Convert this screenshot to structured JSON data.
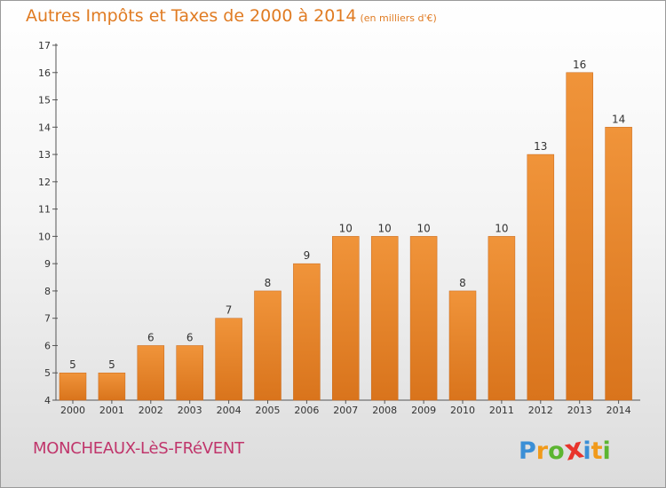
{
  "title": "Autres Impôts et Taxes de 2000 à 2014",
  "subtitle": "(en milliers d'€)",
  "commune": "MONCHEAUX-LèS-FRéVENT",
  "logo": {
    "letters": [
      "P",
      "r",
      "o",
      "x",
      "i",
      "t",
      "i"
    ],
    "colors": [
      "#3b8fd6",
      "#f19a1a",
      "#5cb531",
      "#e8342c",
      "#3b8fd6",
      "#f19a1a",
      "#5cb531"
    ]
  },
  "colors": {
    "bar": "#f0943a",
    "bar_dark": "#d9741c",
    "title": "#e07b22",
    "commune": "#c0356b"
  },
  "chart_data": {
    "type": "bar",
    "categories": [
      "2000",
      "2001",
      "2002",
      "2003",
      "2004",
      "2005",
      "2006",
      "2007",
      "2008",
      "2009",
      "2010",
      "2011",
      "2012",
      "2013",
      "2014"
    ],
    "values": [
      5,
      5,
      6,
      6,
      7,
      8,
      9,
      10,
      10,
      10,
      8,
      10,
      13,
      16,
      14
    ],
    "labels": [
      "5",
      "5",
      "6",
      "6",
      "7",
      "8",
      "9",
      "10",
      "10",
      "10",
      "8",
      "10",
      "13",
      "16",
      "14"
    ],
    "title": "Autres Impôts et Taxes de 2000 à 2014",
    "xlabel": "",
    "ylabel": "",
    "ylim": [
      4,
      17
    ],
    "yticks": [
      "4",
      "5",
      "6",
      "7",
      "8",
      "9",
      "10",
      "11",
      "12",
      "13",
      "14",
      "15",
      "16",
      "17"
    ],
    "grid": false
  }
}
